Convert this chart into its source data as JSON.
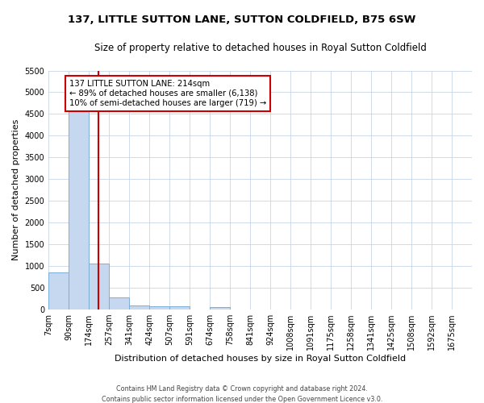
{
  "title": "137, LITTLE SUTTON LANE, SUTTON COLDFIELD, B75 6SW",
  "subtitle": "Size of property relative to detached houses in Royal Sutton Coldfield",
  "xlabel": "Distribution of detached houses by size in Royal Sutton Coldfield",
  "ylabel": "Number of detached properties",
  "footer_line1": "Contains HM Land Registry data © Crown copyright and database right 2024.",
  "footer_line2": "Contains public sector information licensed under the Open Government Licence v3.0.",
  "bin_labels": [
    "7sqm",
    "90sqm",
    "174sqm",
    "257sqm",
    "341sqm",
    "424sqm",
    "507sqm",
    "591sqm",
    "674sqm",
    "758sqm",
    "841sqm",
    "924sqm",
    "1008sqm",
    "1091sqm",
    "1175sqm",
    "1258sqm",
    "1341sqm",
    "1425sqm",
    "1508sqm",
    "1592sqm",
    "1675sqm"
  ],
  "bar_values": [
    850,
    4580,
    1050,
    275,
    90,
    75,
    70,
    0,
    60,
    0,
    0,
    0,
    0,
    0,
    0,
    0,
    0,
    0,
    0,
    0
  ],
  "bar_color": "#c5d8f0",
  "bar_edge_color": "#7bafd4",
  "ylim": [
    0,
    5500
  ],
  "yticks": [
    0,
    500,
    1000,
    1500,
    2000,
    2500,
    3000,
    3500,
    4000,
    4500,
    5000,
    5500
  ],
  "property_size": 214,
  "property_line_color": "#cc0000",
  "annotation_line1": "137 LITTLE SUTTON LANE: 214sqm",
  "annotation_line2": "← 89% of detached houses are smaller (6,138)",
  "annotation_line3": "10% of semi-detached houses are larger (719) →",
  "annotation_box_color": "white",
  "annotation_box_edge_color": "#cc0000",
  "bin_edges": [
    7,
    90,
    174,
    257,
    341,
    424,
    507,
    591,
    674,
    758,
    841,
    924,
    1008,
    1091,
    1175,
    1258,
    1341,
    1425,
    1508,
    1592,
    1675
  ]
}
